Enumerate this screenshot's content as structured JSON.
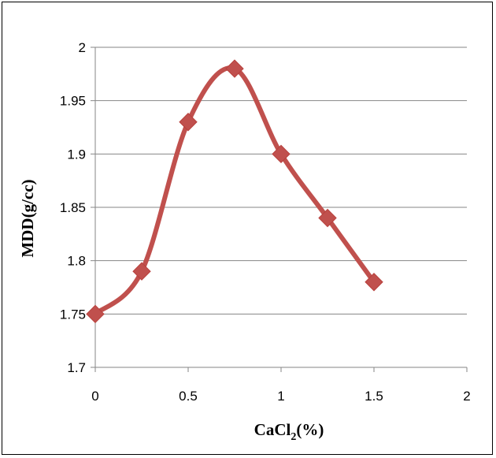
{
  "chart_data": {
    "type": "line",
    "title": "",
    "xlabel_main": "CaCl",
    "xlabel_sub": "2",
    "xlabel_tail": "(%)",
    "ylabel": "MDD(g/cc)",
    "xlim": [
      0,
      2
    ],
    "ylim": [
      1.7,
      2
    ],
    "x_ticks": [
      "0",
      "0.5",
      "1",
      "1.5",
      "2"
    ],
    "y_ticks": [
      "1.7",
      "1.75",
      "1.8",
      "1.85",
      "1.9",
      "1.95",
      "2"
    ],
    "grid": "horizontal",
    "legend": "none",
    "series": [
      {
        "x": [
          0,
          0.25,
          0.5,
          0.75,
          1.0,
          1.25,
          1.5
        ],
        "y": [
          1.75,
          1.79,
          1.93,
          1.98,
          1.9,
          1.84,
          1.78
        ],
        "color": "#c0504d",
        "marker": "diamond",
        "smooth": true
      }
    ]
  }
}
